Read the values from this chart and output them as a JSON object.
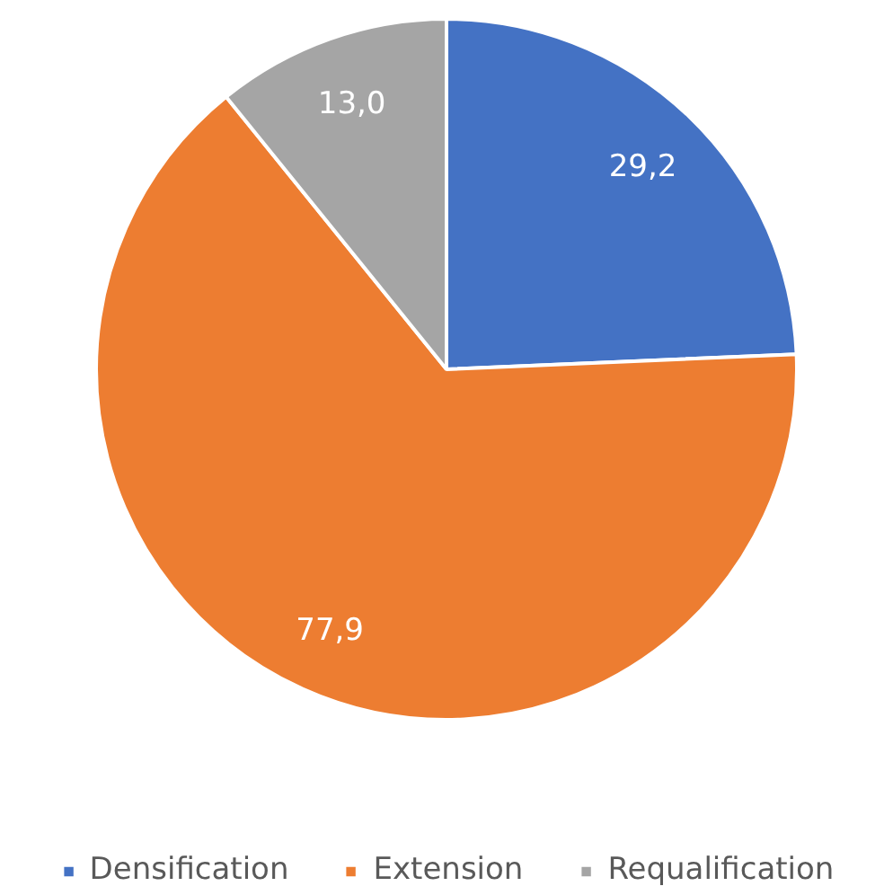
{
  "chart_data": {
    "type": "pie",
    "categories": [
      "Densification",
      "Extension",
      "Requalification"
    ],
    "values": [
      29.2,
      77.9,
      13.0
    ],
    "colors": [
      "#4472c4",
      "#ed7d31",
      "#a5a5a5"
    ],
    "value_labels": [
      "29,2",
      "77,9",
      "13,0"
    ],
    "legend": "bottom"
  }
}
